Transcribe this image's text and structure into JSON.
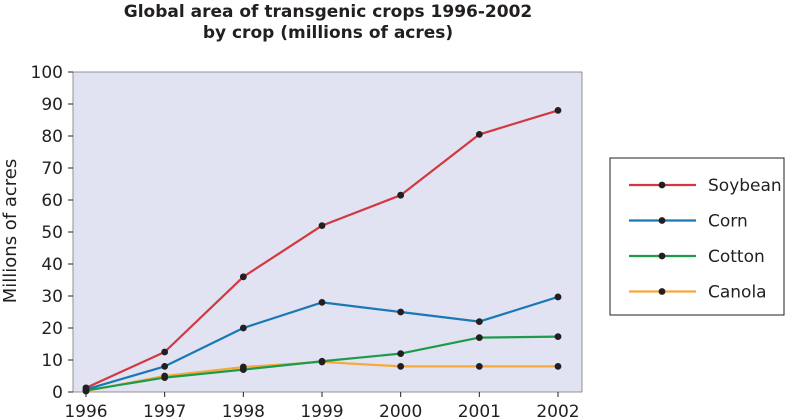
{
  "chart_data": {
    "type": "line",
    "title": [
      "Global area of transgenic crops 1996-2002",
      "by crop (millions of acres)"
    ],
    "xlabel": "",
    "ylabel": "Millions of acres",
    "categories": [
      "1996",
      "1997",
      "1998",
      "1999",
      "2000",
      "2001",
      "2002"
    ],
    "yticks": [
      "0",
      "10",
      "20",
      "30",
      "40",
      "50",
      "60",
      "70",
      "80",
      "90",
      "100"
    ],
    "ylim": [
      0,
      100
    ],
    "grid": false,
    "legend_position": "right",
    "series": [
      {
        "name": "Soybean",
        "color": "#d2383f",
        "values": [
          1.3,
          12.5,
          36,
          52,
          61.5,
          80.5,
          88
        ]
      },
      {
        "name": "Corn",
        "color": "#1a78b4",
        "values": [
          0.8,
          8,
          20,
          28,
          25,
          22,
          29.7
        ]
      },
      {
        "name": "Cotton",
        "color": "#1d9b4b",
        "values": [
          0.5,
          4.5,
          7,
          9.6,
          12,
          17,
          17.3
        ]
      },
      {
        "name": "Canola",
        "color": "#f4a93a",
        "values": [
          0.3,
          5,
          7.8,
          9.4,
          8,
          8,
          8
        ]
      }
    ],
    "plot_background": "#e1e3f3",
    "marker_color": "#231f20"
  }
}
